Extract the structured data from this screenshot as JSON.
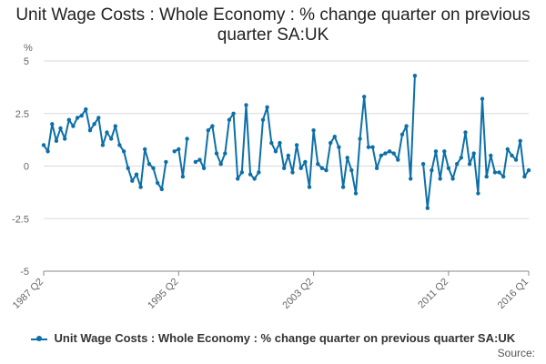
{
  "page": {
    "title": "Unit Wage Costs : Whole Economy : % change quarter on previous quarter SA:UK",
    "source_label": "Source:"
  },
  "chart_data": {
    "type": "line",
    "title": "Unit Wage Costs : Whole Economy : % change quarter on previous quarter SA:UK",
    "ylabel": "%",
    "xlabel": "",
    "ylim": [
      -5,
      5
    ],
    "yticks": [
      5,
      2.5,
      0,
      -2.5,
      -5
    ],
    "ytick_labels": [
      "5",
      "2.5",
      "0",
      "-2.5",
      "-5"
    ],
    "x_first": "1987 Q2",
    "x_last": "2016 Q1",
    "xtick_labels": [
      "1987 Q2",
      "1995 Q2",
      "2003 Q2",
      "2011 Q2",
      "2016 Q1"
    ],
    "grid": "horizontal",
    "legend": "bottom",
    "line_color": "#0d6fa8",
    "series": [
      {
        "name": "Unit Wage Costs : Whole Economy : % change quarter on previous quarter SA:UK",
        "values": [
          1.0,
          0.7,
          2.0,
          1.2,
          1.8,
          1.3,
          2.2,
          1.9,
          2.3,
          2.4,
          2.7,
          1.7,
          2.0,
          2.3,
          1.0,
          1.6,
          1.3,
          1.9,
          1.0,
          0.7,
          -0.1,
          -0.7,
          -0.4,
          -1.0,
          0.8,
          0.1,
          -0.1,
          -0.8,
          -1.1,
          0.2,
          null,
          0.7,
          0.8,
          -0.5,
          1.3,
          null,
          0.2,
          0.3,
          -0.1,
          1.7,
          1.9,
          0.6,
          0.1,
          0.6,
          2.2,
          2.5,
          -0.6,
          -0.3,
          2.9,
          -0.4,
          -0.6,
          -0.3,
          2.2,
          2.8,
          1.1,
          0.7,
          1.1,
          -0.1,
          0.5,
          -0.3,
          1.0,
          -0.1,
          0.2,
          -1.0,
          1.7,
          0.1,
          -0.1,
          -0.2,
          1.1,
          1.4,
          0.9,
          -1.0,
          0.4,
          -0.2,
          -1.3,
          1.3,
          3.3,
          0.9,
          0.9,
          -0.1,
          0.5,
          0.6,
          0.7,
          0.6,
          0.3,
          1.5,
          1.9,
          -0.6,
          4.3,
          null,
          0.1,
          -2.0,
          -0.2,
          0.7,
          -0.6,
          0.7,
          -0.1,
          -0.6,
          0.1,
          0.4,
          1.6,
          0.1,
          0.6,
          -1.3,
          3.2,
          -0.5,
          0.5,
          -0.3,
          -0.3,
          -0.5,
          0.8,
          0.5,
          0.3,
          1.2,
          -0.5,
          -0.2
        ]
      }
    ]
  }
}
